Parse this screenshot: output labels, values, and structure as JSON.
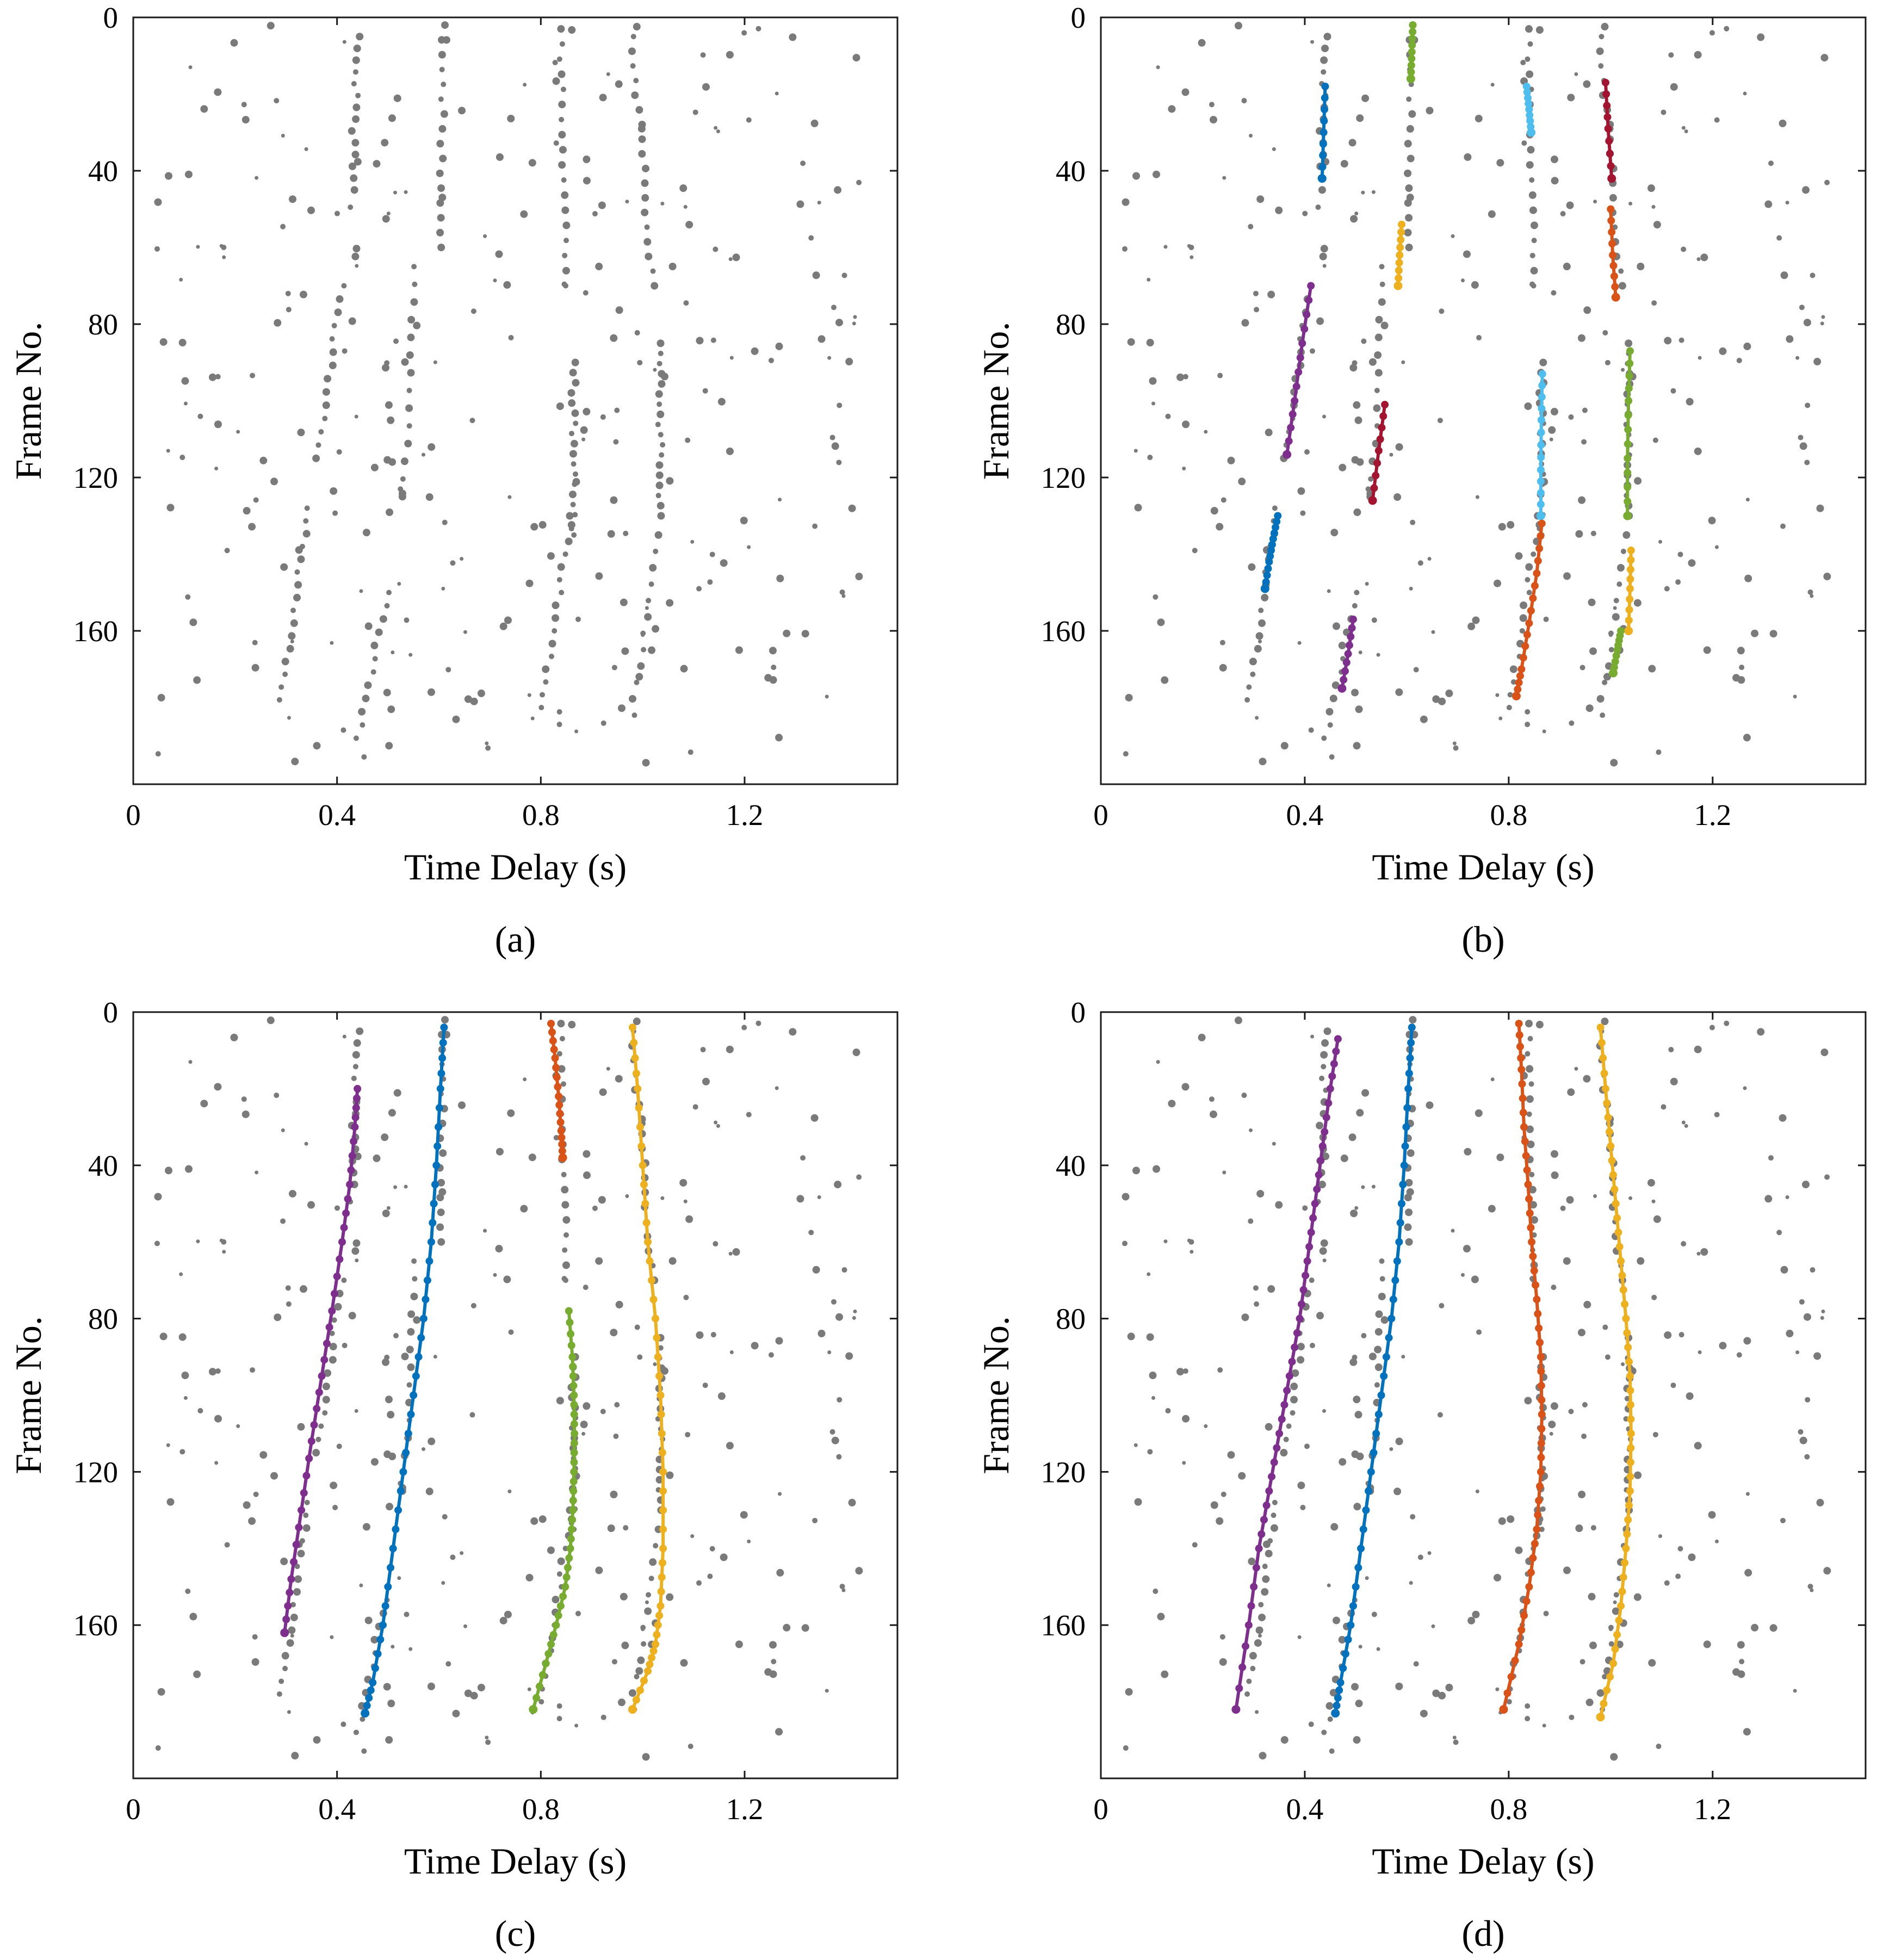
{
  "chart_data": [
    {
      "type": "scatter",
      "panel_label": "(a)",
      "xlabel": "Time Delay (s)",
      "ylabel": "Frame No.",
      "xlim": [
        0,
        1.5
      ],
      "ylim": [
        0,
        200
      ],
      "y_direction": "reversed",
      "x_ticks": [
        0,
        0.4,
        0.8,
        1.2
      ],
      "x_tick_labels": [
        "0",
        "0.4",
        "0.8",
        "1.2"
      ],
      "y_ticks": [
        0,
        40,
        80,
        120,
        160
      ],
      "y_tick_labels": [
        "0",
        "40",
        "80",
        "120",
        "160"
      ],
      "tracks": []
    },
    {
      "type": "scatter",
      "panel_label": "(b)",
      "xlabel": "Time Delay (s)",
      "ylabel": "Frame No.",
      "xlim": [
        0,
        1.5
      ],
      "ylim": [
        0,
        200
      ],
      "y_direction": "reversed",
      "x_ticks": [
        0,
        0.4,
        0.8,
        1.2
      ],
      "x_tick_labels": [
        "0",
        "0.4",
        "0.8",
        "1.2"
      ],
      "y_ticks": [
        0,
        40,
        80,
        120,
        160
      ],
      "y_tick_labels": [
        "0",
        "40",
        "80",
        "120",
        "160"
      ],
      "tracks": [
        {
          "color": "#0072BD",
          "x": [
            0.44,
            0.437,
            0.434
          ],
          "y": [
            18,
            30,
            42
          ]
        },
        {
          "color": "#77AC30",
          "x": [
            0.612,
            0.61,
            0.608
          ],
          "y": [
            2,
            9,
            16
          ]
        },
        {
          "color": "#4DBEEE",
          "x": [
            0.835,
            0.84,
            0.844
          ],
          "y": [
            18,
            24,
            30
          ]
        },
        {
          "color": "#A2142F",
          "x": [
            0.99,
            0.995,
            1.002
          ],
          "y": [
            17,
            29,
            42
          ]
        },
        {
          "color": "#EDB120",
          "x": [
            0.59,
            0.586,
            0.583
          ],
          "y": [
            54,
            62,
            70
          ]
        },
        {
          "color": "#D95319",
          "x": [
            1.0,
            1.004,
            1.01
          ],
          "y": [
            50,
            62,
            73
          ]
        },
        {
          "color": "#7E2F8E",
          "x": [
            0.412,
            0.395,
            0.38,
            0.365
          ],
          "y": [
            70,
            85,
            100,
            114
          ]
        },
        {
          "color": "#77AC30",
          "x": [
            1.038,
            1.035,
            1.033,
            1.033
          ],
          "y": [
            87,
            100,
            115,
            130
          ]
        },
        {
          "color": "#4DBEEE",
          "x": [
            0.866,
            0.864,
            0.863,
            0.863
          ],
          "y": [
            93,
            105,
            118,
            130
          ]
        },
        {
          "color": "#A2142F",
          "x": [
            0.557,
            0.545,
            0.533
          ],
          "y": [
            101,
            113,
            126
          ]
        },
        {
          "color": "#0072BD",
          "x": [
            0.347,
            0.338,
            0.33,
            0.322
          ],
          "y": [
            130,
            136,
            142,
            149
          ]
        },
        {
          "color": "#D95319",
          "x": [
            0.865,
            0.855,
            0.84,
            0.825,
            0.815
          ],
          "y": [
            132,
            145,
            158,
            170,
            177
          ]
        },
        {
          "color": "#EDB120",
          "x": [
            1.04,
            1.038,
            1.035
          ],
          "y": [
            139,
            149,
            160
          ]
        },
        {
          "color": "#7E2F8E",
          "x": [
            0.495,
            0.485,
            0.473
          ],
          "y": [
            157,
            166,
            175
          ]
        },
        {
          "color": "#77AC30",
          "x": [
            1.02,
            1.013,
            1.005
          ],
          "y": [
            160,
            165,
            171
          ]
        }
      ]
    },
    {
      "type": "scatter",
      "panel_label": "(c)",
      "xlabel": "Time Delay (s)",
      "ylabel": "Frame No.",
      "xlim": [
        0,
        1.5
      ],
      "ylim": [
        0,
        200
      ],
      "y_direction": "reversed",
      "x_ticks": [
        0,
        0.4,
        0.8,
        1.2
      ],
      "x_tick_labels": [
        "0",
        "0.4",
        "0.8",
        "1.2"
      ],
      "y_ticks": [
        0,
        40,
        80,
        120,
        160
      ],
      "y_tick_labels": [
        "0",
        "40",
        "80",
        "120",
        "160"
      ],
      "tracks": [
        {
          "color": "#7E2F8E",
          "x": [
            0.44,
            0.435,
            0.425,
            0.41,
            0.39,
            0.37,
            0.35,
            0.33,
            0.31,
            0.297
          ],
          "y": [
            20,
            30,
            45,
            60,
            78,
            95,
            112,
            130,
            148,
            162
          ]
        },
        {
          "color": "#0072BD",
          "x": [
            0.61,
            0.603,
            0.595,
            0.585,
            0.57,
            0.55,
            0.53,
            0.51,
            0.49,
            0.47,
            0.455
          ],
          "y": [
            4,
            20,
            40,
            60,
            80,
            100,
            120,
            140,
            160,
            175,
            183
          ]
        },
        {
          "color": "#D95319",
          "x": [
            0.82,
            0.828,
            0.835,
            0.84,
            0.843
          ],
          "y": [
            3,
            12,
            22,
            31,
            38
          ]
        },
        {
          "color": "#77AC30",
          "x": [
            0.855,
            0.862,
            0.865,
            0.866,
            0.865,
            0.863,
            0.858,
            0.848,
            0.83,
            0.81,
            0.785
          ],
          "y": [
            78,
            90,
            100,
            110,
            120,
            130,
            140,
            150,
            160,
            170,
            182
          ]
        },
        {
          "color": "#EDB120",
          "x": [
            0.98,
            0.99,
            1.0,
            1.01,
            1.025,
            1.035,
            1.04,
            1.04,
            1.035,
            1.025,
            1.01,
            0.98
          ],
          "y": [
            4,
            20,
            40,
            60,
            80,
            100,
            120,
            140,
            155,
            165,
            172,
            182
          ]
        }
      ]
    },
    {
      "type": "scatter",
      "panel_label": "(d)",
      "xlabel": "Time Delay (s)",
      "ylabel": "Frame No.",
      "xlim": [
        0,
        1.5
      ],
      "ylim": [
        0,
        200
      ],
      "y_direction": "reversed",
      "x_ticks": [
        0,
        0.4,
        0.8,
        1.2
      ],
      "x_tick_labels": [
        "0",
        "0.4",
        "0.8",
        "1.2"
      ],
      "y_ticks": [
        0,
        40,
        80,
        120,
        160
      ],
      "y_tick_labels": [
        "0",
        "40",
        "80",
        "120",
        "160"
      ],
      "tracks": [
        {
          "color": "#7E2F8E",
          "x": [
            0.465,
            0.45,
            0.435,
            0.42,
            0.405,
            0.39,
            0.37,
            0.35,
            0.33,
            0.31,
            0.29,
            0.265
          ],
          "y": [
            7,
            20,
            35,
            50,
            65,
            80,
            95,
            110,
            125,
            140,
            160,
            182
          ]
        },
        {
          "color": "#0072BD",
          "x": [
            0.61,
            0.603,
            0.595,
            0.585,
            0.57,
            0.55,
            0.53,
            0.51,
            0.49,
            0.47,
            0.46
          ],
          "y": [
            4,
            20,
            40,
            60,
            80,
            100,
            120,
            140,
            160,
            175,
            183
          ]
        },
        {
          "color": "#D95319",
          "x": [
            0.82,
            0.825,
            0.83,
            0.838,
            0.845,
            0.855,
            0.863,
            0.865,
            0.863,
            0.855,
            0.84,
            0.82,
            0.79
          ],
          "y": [
            3,
            15,
            30,
            45,
            60,
            75,
            90,
            105,
            120,
            135,
            150,
            165,
            182
          ]
        },
        {
          "color": "#EDB120",
          "x": [
            0.98,
            0.99,
            1.0,
            1.01,
            1.02,
            1.03,
            1.038,
            1.04,
            1.038,
            1.03,
            1.02,
            1.005,
            0.98
          ],
          "y": [
            4,
            20,
            35,
            50,
            65,
            80,
            95,
            110,
            125,
            140,
            155,
            170,
            184
          ]
        }
      ]
    }
  ]
}
